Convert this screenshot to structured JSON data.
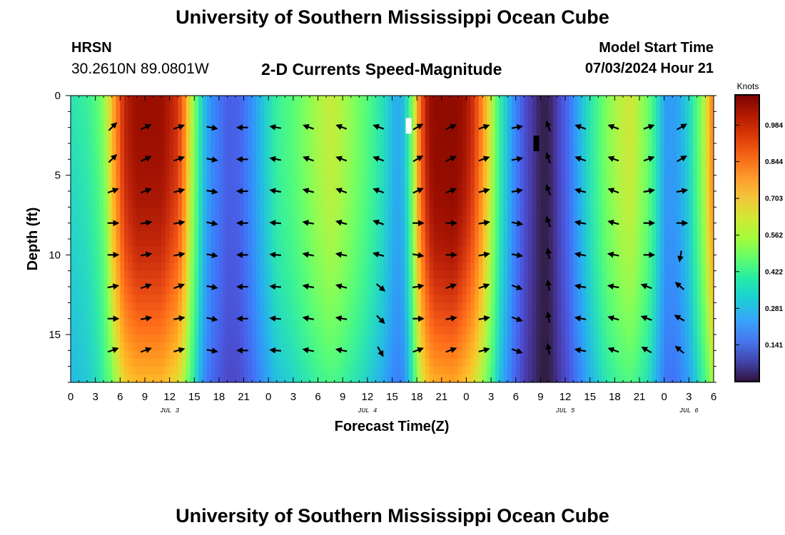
{
  "header": {
    "title": "University of Southern Mississippi Ocean Cube",
    "station_name": "HRSN",
    "coordinates": "30.2610N  89.0801W",
    "subtitle": "2-D Currents Speed-Magnitude",
    "model_start_label": "Model Start Time",
    "model_start_value": "07/03/2024 Hour 21"
  },
  "footer": {
    "title": "University of Southern Mississippi Ocean Cube"
  },
  "chart_data": {
    "type": "heatmap",
    "title": "2-D Currents Speed-Magnitude",
    "xlabel": "Forecast Time(Z)",
    "ylabel": "Depth (ft)",
    "x_start_hour": 0,
    "x_end_hour": 78,
    "x_ticks": [
      {
        "hour": 0,
        "label": "0"
      },
      {
        "hour": 3,
        "label": "3"
      },
      {
        "hour": 6,
        "label": "6"
      },
      {
        "hour": 9,
        "label": "9"
      },
      {
        "hour": 12,
        "label": "12"
      },
      {
        "hour": 15,
        "label": "15"
      },
      {
        "hour": 18,
        "label": "18"
      },
      {
        "hour": 21,
        "label": "21"
      },
      {
        "hour": 24,
        "label": "0"
      },
      {
        "hour": 27,
        "label": "3"
      },
      {
        "hour": 30,
        "label": "6"
      },
      {
        "hour": 33,
        "label": "9"
      },
      {
        "hour": 36,
        "label": "12"
      },
      {
        "hour": 39,
        "label": "15"
      },
      {
        "hour": 42,
        "label": "18"
      },
      {
        "hour": 45,
        "label": "21"
      },
      {
        "hour": 48,
        "label": "0"
      },
      {
        "hour": 51,
        "label": "3"
      },
      {
        "hour": 54,
        "label": "6"
      },
      {
        "hour": 57,
        "label": "9"
      },
      {
        "hour": 60,
        "label": "12"
      },
      {
        "hour": 63,
        "label": "15"
      },
      {
        "hour": 66,
        "label": "18"
      },
      {
        "hour": 69,
        "label": "21"
      },
      {
        "hour": 72,
        "label": "0"
      },
      {
        "hour": 75,
        "label": "3"
      },
      {
        "hour": 78,
        "label": "6"
      }
    ],
    "day_labels": [
      {
        "hour": 12,
        "label": "JUL 3"
      },
      {
        "hour": 36,
        "label": "JUL 4"
      },
      {
        "hour": 60,
        "label": "JUL 5"
      },
      {
        "hour": 75,
        "label": "JUL 6"
      }
    ],
    "ylim": [
      0,
      18
    ],
    "y_ticks": [
      0,
      5,
      10,
      15
    ],
    "colorbar": {
      "label": "Knots",
      "range": [
        0,
        1.1
      ],
      "ticks": [
        0.141,
        0.281,
        0.422,
        0.562,
        0.703,
        0.844,
        0.984
      ]
    },
    "speed_profile": {
      "hours": [
        0,
        2,
        3.5,
        4.5,
        5.5,
        6.5,
        8,
        11,
        13,
        13.8,
        14.5,
        15.3,
        16,
        17,
        19,
        20.5,
        22,
        23.5,
        25,
        27,
        28.5,
        30,
        31.5,
        32.5,
        34,
        36,
        38,
        39.5,
        40.5,
        41.5,
        42,
        43,
        44,
        46.5,
        48,
        49,
        50,
        51,
        52,
        53.5,
        55,
        56.5,
        57,
        57.8,
        58.5,
        59,
        60.5,
        62,
        63.5,
        65,
        66.5,
        68,
        70,
        71.5,
        72.2,
        73.5,
        75,
        76,
        77,
        78
      ],
      "surface_knots": [
        0.36,
        0.4,
        0.48,
        0.62,
        0.82,
        0.98,
        1.05,
        1.05,
        0.95,
        0.82,
        0.64,
        0.45,
        0.3,
        0.2,
        0.12,
        0.13,
        0.2,
        0.3,
        0.4,
        0.46,
        0.52,
        0.58,
        0.62,
        0.6,
        0.54,
        0.45,
        0.34,
        0.24,
        0.28,
        0.52,
        0.76,
        0.98,
        1.08,
        1.1,
        1.02,
        0.94,
        0.8,
        0.62,
        0.4,
        0.22,
        0.1,
        0.04,
        0.02,
        0.02,
        0.04,
        0.07,
        0.15,
        0.28,
        0.4,
        0.52,
        0.6,
        0.64,
        0.5,
        0.3,
        0.22,
        0.22,
        0.32,
        0.45,
        0.62,
        0.85
      ]
    },
    "arrows": {
      "hours": [
        5,
        9,
        13,
        17,
        21,
        25,
        29,
        33,
        37.5,
        42,
        46,
        50,
        54,
        58,
        62,
        66,
        70,
        74
      ],
      "depths_ft": [
        2,
        4,
        6,
        8,
        10,
        12,
        14,
        16
      ],
      "angles_deg": [
        [
          -45,
          -25,
          -20,
          10,
          180,
          190,
          200,
          200,
          200,
          -30,
          -25,
          -20,
          -10,
          -110,
          200,
          200,
          -20,
          -30
        ],
        [
          -45,
          -25,
          -20,
          10,
          180,
          190,
          200,
          200,
          200,
          -30,
          -25,
          -20,
          -10,
          -110,
          200,
          200,
          -20,
          -30
        ],
        [
          -20,
          -20,
          -15,
          10,
          180,
          190,
          195,
          200,
          200,
          -25,
          -20,
          -15,
          -10,
          -110,
          195,
          200,
          -10,
          -10
        ],
        [
          0,
          -10,
          -10,
          10,
          180,
          185,
          190,
          195,
          200,
          0,
          0,
          -10,
          10,
          -110,
          190,
          195,
          0,
          0
        ],
        [
          0,
          -10,
          -10,
          10,
          180,
          185,
          190,
          190,
          195,
          10,
          0,
          -10,
          10,
          -100,
          190,
          190,
          0,
          100
        ],
        [
          -10,
          -20,
          -20,
          10,
          180,
          185,
          190,
          195,
          40,
          -10,
          -20,
          -20,
          20,
          -100,
          190,
          190,
          200,
          220
        ],
        [
          0,
          -10,
          -10,
          10,
          180,
          185,
          190,
          190,
          45,
          0,
          -10,
          -10,
          20,
          -100,
          190,
          195,
          200,
          210
        ],
        [
          -20,
          -20,
          -15,
          10,
          180,
          185,
          190,
          190,
          60,
          -20,
          -20,
          -15,
          20,
          -100,
          190,
          200,
          210,
          220
        ]
      ]
    },
    "bad_data_marks": [
      {
        "hour": 41,
        "depth_ft": 1.9,
        "color": "#ffffff"
      },
      {
        "hour": 56.5,
        "depth_ft": 3.0,
        "color": "#000000"
      }
    ]
  }
}
